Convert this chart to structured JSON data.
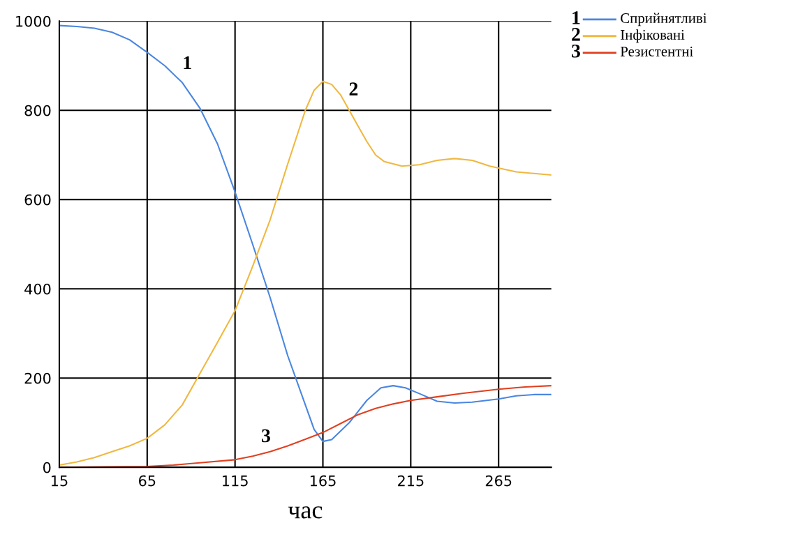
{
  "chart_data": {
    "type": "line",
    "xlabel": "час",
    "xlim": [
      15,
      295
    ],
    "xticks": [
      15,
      65,
      115,
      165,
      215,
      265
    ],
    "ylim": [
      0,
      1000
    ],
    "yticks": [
      0,
      200,
      400,
      600,
      800,
      1000
    ],
    "grid": true,
    "legend": "top right",
    "marker": "none",
    "line_style": "solid",
    "annotations": [
      "1",
      "2",
      "3"
    ],
    "series": [
      {
        "name": "Сприйнятливі",
        "color": "#4a86e0",
        "x": [
          15,
          25,
          35,
          45,
          55,
          65,
          75,
          85,
          95,
          105,
          115,
          125,
          135,
          145,
          155,
          160,
          165,
          170,
          180,
          190,
          198,
          205,
          212,
          220,
          230,
          240,
          250,
          265,
          275,
          285,
          295
        ],
        "values": [
          990,
          988,
          984,
          975,
          958,
          930,
          900,
          862,
          805,
          725,
          617,
          500,
          380,
          250,
          140,
          85,
          58,
          62,
          100,
          150,
          178,
          183,
          178,
          165,
          148,
          144,
          146,
          153,
          160,
          163,
          163
        ]
      },
      {
        "name": "Інфіковані",
        "color": "#f0b840",
        "x": [
          15,
          25,
          35,
          45,
          55,
          65,
          75,
          85,
          95,
          105,
          115,
          125,
          135,
          145,
          155,
          160,
          165,
          170,
          175,
          180,
          185,
          190,
          195,
          200,
          210,
          220,
          230,
          240,
          250,
          260,
          275,
          295
        ],
        "values": [
          5,
          12,
          22,
          35,
          48,
          65,
          95,
          140,
          210,
          280,
          351,
          450,
          555,
          680,
          800,
          845,
          865,
          858,
          835,
          800,
          765,
          730,
          700,
          685,
          675,
          678,
          688,
          692,
          688,
          675,
          662,
          655
        ]
      },
      {
        "name": "Резистентні",
        "color": "#e04020",
        "x": [
          15,
          40,
          65,
          80,
          95,
          115,
          125,
          135,
          145,
          155,
          165,
          175,
          185,
          195,
          205,
          215,
          230,
          245,
          265,
          280,
          295
        ],
        "values": [
          0,
          1,
          2,
          5,
          10,
          17,
          25,
          35,
          48,
          63,
          78,
          98,
          118,
          132,
          142,
          150,
          158,
          166,
          175,
          180,
          183
        ]
      }
    ]
  }
}
